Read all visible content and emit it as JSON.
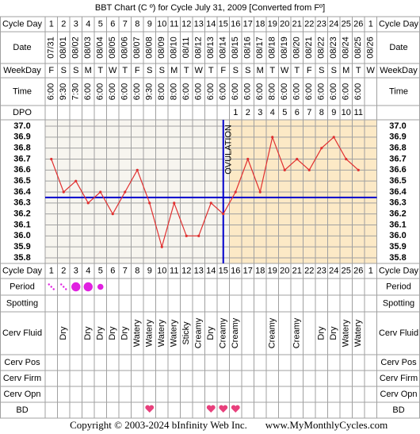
{
  "title": "BBT Chart (C º) for Cycle July 31, 2009  [Converted from Fº]",
  "row_labels": {
    "cycle_day": "Cycle Day",
    "date": "Date",
    "weekday": "WeekDay",
    "time": "Time",
    "dpo": "DPO",
    "period": "Period",
    "spotting": "Spotting",
    "cerv_fluid": "Cerv Fluid",
    "cerv_pos": "Cerv Pos",
    "cerv_firm": "Cerv Firm",
    "cerv_opn": "Cerv Opn",
    "bd": "BD"
  },
  "cycle_day": [
    1,
    2,
    3,
    4,
    5,
    6,
    7,
    8,
    9,
    10,
    11,
    12,
    13,
    14,
    15,
    16,
    17,
    18,
    19,
    20,
    21,
    22,
    23,
    24,
    25,
    26,
    1
  ],
  "date": [
    "07/31",
    "08/01",
    "08/02",
    "08/03",
    "08/04",
    "08/05",
    "08/06",
    "08/07",
    "08/08",
    "08/09",
    "08/10",
    "08/11",
    "08/12",
    "08/13",
    "08/14",
    "08/15",
    "08/16",
    "08/17",
    "08/18",
    "08/19",
    "08/20",
    "08/21",
    "08/22",
    "08/23",
    "08/24",
    "08/25",
    "08/26"
  ],
  "weekday": [
    "F",
    "S",
    "S",
    "M",
    "T",
    "W",
    "T",
    "F",
    "S",
    "S",
    "M",
    "T",
    "W",
    "T",
    "F",
    "S",
    "S",
    "M",
    "T",
    "W",
    "T",
    "F",
    "S",
    "S",
    "M",
    "T",
    "W"
  ],
  "time": [
    "6:00",
    "9:30",
    "7:30",
    "6:00",
    "6:00",
    "6:00",
    "6:00",
    "6:00",
    "9:30",
    "8:00",
    "8:00",
    "6:00",
    "6:00",
    "6:00",
    "6:00",
    "6:00",
    "6:00",
    "6:00",
    "8:00",
    "6:00",
    "6:00",
    "6:00",
    "6:00",
    "6:00",
    "6:00",
    "6:00",
    null
  ],
  "dpo": [
    null,
    null,
    null,
    null,
    null,
    null,
    null,
    null,
    null,
    null,
    null,
    null,
    null,
    null,
    null,
    1,
    2,
    3,
    4,
    5,
    6,
    7,
    8,
    9,
    10,
    11,
    null
  ],
  "period": [
    1,
    1,
    3,
    3,
    2,
    null,
    null,
    null,
    null,
    null,
    null,
    null,
    null,
    null,
    null,
    null,
    null,
    null,
    null,
    null,
    null,
    null,
    null,
    null,
    null,
    null,
    null
  ],
  "cerv_fluid": [
    null,
    "Dry",
    null,
    "Dry",
    "Dry",
    "Dry",
    "Dry",
    "Watery",
    "Watery",
    "Watery",
    "Watery",
    "Sticky",
    "Creamy",
    "Dry",
    "Creamy",
    "Creamy",
    null,
    null,
    "Creamy",
    null,
    "Creamy",
    null,
    "Dry",
    "Dry",
    "Watery",
    "Watery",
    null
  ],
  "bd": [
    null,
    null,
    null,
    null,
    null,
    null,
    null,
    null,
    1,
    null,
    null,
    null,
    null,
    1,
    1,
    1,
    null,
    null,
    null,
    null,
    null,
    null,
    null,
    null,
    null,
    null,
    null
  ],
  "chart_data": {
    "type": "line",
    "color": "#e03030",
    "values": [
      36.7,
      36.4,
      36.5,
      36.3,
      36.4,
      36.2,
      36.4,
      36.6,
      36.3,
      35.9,
      36.3,
      36.0,
      36.0,
      36.3,
      36.2,
      36.4,
      36.7,
      36.4,
      36.9,
      36.6,
      36.7,
      36.6,
      36.8,
      36.9,
      36.7,
      36.6,
      null
    ],
    "ylim": [
      35.8,
      37.0
    ],
    "yticks": [
      35.8,
      35.9,
      {
        "value": 36,
        "label": "36.0"
      },
      36.1,
      36.2,
      36.3,
      36.4,
      36.5,
      36.6,
      36.7,
      36.8,
      36.9,
      {
        "value": 37,
        "label": "37.0"
      }
    ],
    "coverline": 36.35,
    "ovulation": {
      "label": "OVULATION",
      "cycle_day": 15
    }
  },
  "footer": {
    "copyright": "Copyright © 2003-2024 bInfinity Web Inc.",
    "website": "www.MyMonthlyCycles.com"
  }
}
